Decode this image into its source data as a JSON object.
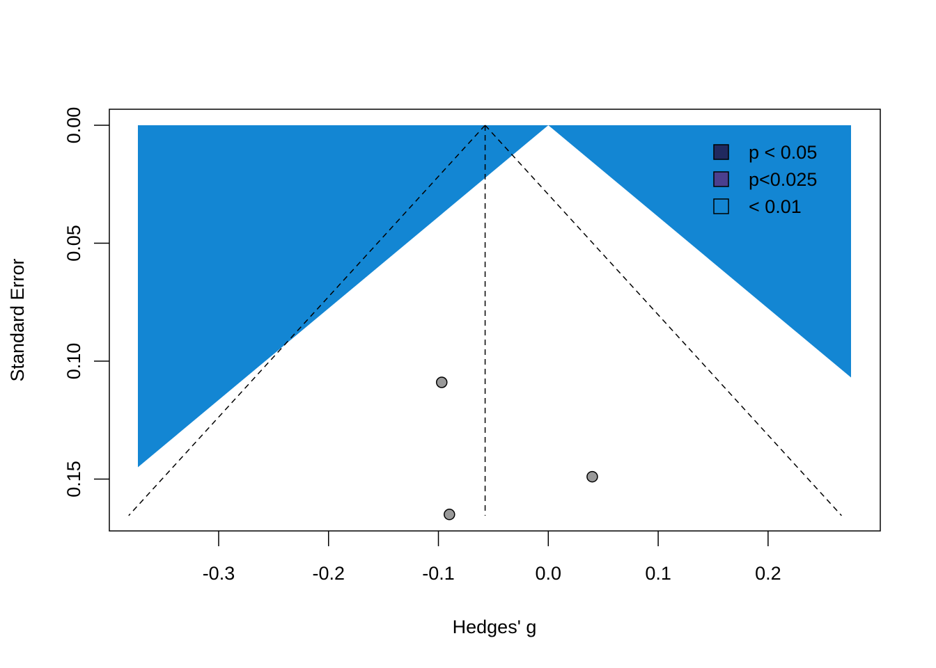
{
  "chart_data": {
    "type": "scatter",
    "subtype": "contour-enhanced funnel plot",
    "xlabel": "Hedges' g",
    "ylabel": "Standard Error",
    "xlim": [
      -0.383,
      0.2755
    ],
    "ylim": [
      0.1655,
      0
    ],
    "y_reversed": true,
    "x_ticks": [
      -0.3,
      -0.2,
      -0.1,
      0.0,
      0.1,
      0.2
    ],
    "x_tick_labels": [
      "-0.3",
      "-0.2",
      "-0.1",
      "0.0",
      "0.1",
      "0.2"
    ],
    "y_ticks": [
      0.0,
      0.05,
      0.1,
      0.15
    ],
    "y_tick_labels": [
      "0.00",
      "0.05",
      "0.10",
      "0.15"
    ],
    "pooled_estimate": -0.0575,
    "contours": {
      "center": 0,
      "z_values": [
        2.576,
        2.241,
        1.96
      ],
      "fill_colors": [
        "#ffffff",
        "#20295f",
        "#4b3f8e"
      ],
      "background_color": "#1386d3"
    },
    "funnel": {
      "center": -0.0575,
      "z": 1.96
    },
    "points": [
      {
        "x": -0.097,
        "se": 0.109
      },
      {
        "x": 0.04,
        "se": 0.149
      },
      {
        "x": -0.09,
        "se": 0.165
      }
    ],
    "point_color": "#999999",
    "legend": {
      "position": "top-right",
      "items": [
        {
          "label": "p < 0.05",
          "color": "#20295f"
        },
        {
          "label": "p<0.025",
          "color": "#4b3f8e"
        },
        {
          "label": "< 0.01",
          "color": "#1386d3"
        }
      ]
    }
  }
}
